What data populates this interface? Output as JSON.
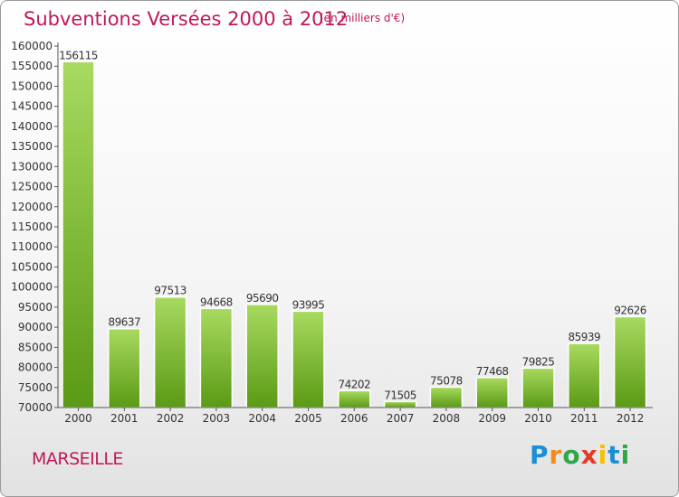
{
  "header": {
    "title": "Subventions Versées 2000 à 2012",
    "unit": "(en milliers d'€)"
  },
  "footer": {
    "city": "MARSEILLE",
    "brand_letters": [
      "P",
      "r",
      "o",
      "x",
      "i",
      "t",
      "i"
    ]
  },
  "colors": {
    "accent": "#c0185a",
    "bar_light": "#a3d65a",
    "bar_dark": "#5a9a14"
  },
  "chart_data": {
    "type": "bar",
    "title": "Subventions Versées 2000 à 2012",
    "subtitle": "(en milliers d'€)",
    "categories": [
      "2000",
      "2001",
      "2002",
      "2003",
      "2004",
      "2005",
      "2006",
      "2007",
      "2008",
      "2009",
      "2010",
      "2011",
      "2012"
    ],
    "values": [
      156115,
      89637,
      97513,
      94668,
      95690,
      93995,
      74202,
      71505,
      75078,
      77468,
      79825,
      85939,
      92626
    ],
    "ylim": [
      70000,
      160000
    ],
    "yticks": [
      70000,
      75000,
      80000,
      85000,
      90000,
      95000,
      100000,
      105000,
      110000,
      115000,
      120000,
      125000,
      130000,
      135000,
      140000,
      145000,
      150000,
      155000,
      160000
    ],
    "grid": false,
    "legend": "none"
  }
}
